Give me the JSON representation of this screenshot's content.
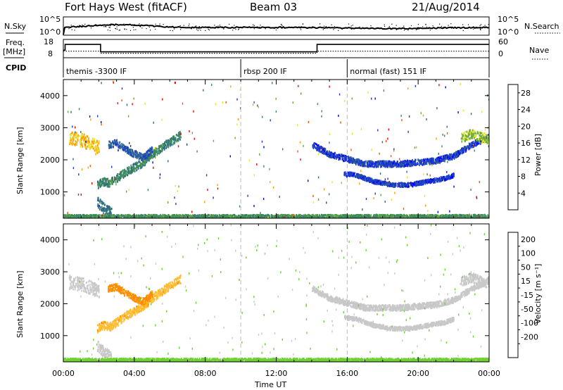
{
  "header": {
    "title": "Fort Hays West (fitACF)",
    "beam": "Beam 03",
    "date": "21/Aug/2014"
  },
  "top_panels": {
    "nsky_label": "N.Sky",
    "nsearch_label": "N.Search",
    "freq_label_1": "Freq.",
    "freq_label_2": "[MHz]",
    "nave_label": "Nave",
    "cpid_label": "CPID",
    "noise_ticks_left": [
      "10^5",
      "10^0"
    ],
    "noise_ticks_right": [
      "10^5",
      "10^0"
    ],
    "freq_ticks_left": [
      "18",
      "8"
    ],
    "nave_ticks_right": [
      "60",
      "0"
    ],
    "freq_steps": {
      "hours": [
        0,
        0.1,
        2.1,
        14.3,
        24
      ],
      "values": [
        12,
        15.7,
        10.9,
        15.7,
        15.7
      ]
    },
    "nave_steps": {
      "hours": [
        0,
        2.1,
        14.3,
        16.1,
        24
      ],
      "values": [
        20,
        12,
        20,
        20,
        20
      ]
    },
    "cpid_modes": [
      {
        "start_hour": 0,
        "label": "themis -3300 IF"
      },
      {
        "start_hour": 10,
        "label": "rbsp 200 IF"
      },
      {
        "start_hour": 16,
        "label": "normal (fast) 151 IF"
      }
    ]
  },
  "chart_data": [
    {
      "type": "heatmap",
      "name": "power",
      "xlabel": "",
      "ylabel": "Slant Range [km]",
      "xlim": [
        0,
        24
      ],
      "ylim": [
        180,
        4500
      ],
      "yticks": [
        1000,
        2000,
        3000,
        4000
      ],
      "colorbar_label": "Power [dB]",
      "colorbar_ticks": [
        4,
        8,
        12,
        16,
        20,
        24,
        28
      ],
      "colorbar_range": [
        0,
        30
      ],
      "mode_change_hours": [
        10,
        16
      ],
      "echo_bands": [
        {
          "hours": [
            0.3,
            0.9,
            1.5,
            2.0
          ],
          "range_km": [
            2700,
            2650,
            2550,
            2400
          ],
          "width_km": 300,
          "value": 20
        },
        {
          "hours": [
            1.9,
            2.2,
            2.6,
            3.0,
            3.5,
            4.0,
            4.5,
            5.0,
            5.6,
            6.2,
            6.6
          ],
          "range_km": [
            1250,
            1350,
            1300,
            1450,
            1650,
            1800,
            1950,
            2200,
            2450,
            2650,
            2800
          ],
          "width_km": 180,
          "value": 11
        },
        {
          "hours": [
            2.5,
            3.0,
            3.5,
            4.0,
            4.5,
            5.0
          ],
          "range_km": [
            2500,
            2550,
            2350,
            2200,
            2100,
            2350
          ],
          "width_km": 150,
          "value": 7
        },
        {
          "hours": [
            1.9,
            2.3,
            2.7
          ],
          "range_km": [
            700,
            500,
            350
          ],
          "width_km": 250,
          "value": 9
        },
        {
          "hours": [
            14.0,
            15.0,
            16.0,
            17.0,
            18.0,
            19.0,
            20.0,
            21.0,
            22.0,
            23.0,
            24.0
          ],
          "range_km": [
            2500,
            2200,
            2050,
            1900,
            1900,
            1900,
            1950,
            2000,
            2150,
            2500,
            2750
          ],
          "width_km": 130,
          "value": 5
        },
        {
          "hours": [
            15.8,
            16.5,
            17.5,
            18.5,
            19.5,
            20.5,
            21.5,
            22.0
          ],
          "range_km": [
            1600,
            1550,
            1350,
            1250,
            1250,
            1350,
            1450,
            1550
          ],
          "width_km": 90,
          "value": 5
        },
        {
          "hours": [
            22.4,
            23.0,
            23.6,
            24.0
          ],
          "range_km": [
            2700,
            2850,
            2700,
            2700
          ],
          "width_km": 220,
          "value": 16
        },
        {
          "hours": [
            0,
            6,
            12,
            18,
            24
          ],
          "range_km": [
            260,
            260,
            260,
            260,
            260
          ],
          "width_km": 80,
          "value": 12
        }
      ]
    },
    {
      "type": "heatmap",
      "name": "velocity",
      "xlabel": "Time UT",
      "ylabel": "Slant Range [km]",
      "xlim": [
        0,
        24
      ],
      "ylim": [
        180,
        4500
      ],
      "yticks": [
        1000,
        2000,
        3000,
        4000
      ],
      "xticks": [
        "00:00",
        "04:00",
        "08:00",
        "12:00",
        "16:00",
        "20:00",
        "00:00"
      ],
      "colorbar_label": "Velocity [m s⁻¹]",
      "colorbar_ticks": [
        200,
        100,
        50,
        15,
        -15,
        -50,
        -100,
        -200
      ],
      "mode_change_hours": [
        10,
        16
      ],
      "echo_bands": [
        {
          "hours": [
            0.3,
            0.9,
            1.5,
            2.0
          ],
          "range_km": [
            2700,
            2650,
            2550,
            2400
          ],
          "width_km": 300,
          "value": 0
        },
        {
          "hours": [
            1.9,
            2.2,
            2.6,
            3.0,
            3.5,
            4.0,
            4.5,
            5.0,
            5.6,
            6.2,
            6.6
          ],
          "range_km": [
            1250,
            1350,
            1300,
            1450,
            1650,
            1800,
            1950,
            2200,
            2450,
            2650,
            2800
          ],
          "width_km": 180,
          "value": -40
        },
        {
          "hours": [
            2.5,
            3.0,
            3.5,
            4.0,
            4.5,
            5.0
          ],
          "range_km": [
            2500,
            2550,
            2350,
            2200,
            2100,
            2350
          ],
          "width_km": 150,
          "value": -60
        },
        {
          "hours": [
            1.9,
            2.3,
            2.7
          ],
          "range_km": [
            700,
            500,
            350
          ],
          "width_km": 250,
          "value": 0
        },
        {
          "hours": [
            14.0,
            15.0,
            16.0,
            17.0,
            18.0,
            19.0,
            20.0,
            21.0,
            22.0,
            23.0,
            24.0
          ],
          "range_km": [
            2500,
            2200,
            2050,
            1900,
            1900,
            1900,
            1950,
            2000,
            2150,
            2500,
            2750
          ],
          "width_km": 130,
          "value": 0
        },
        {
          "hours": [
            15.8,
            16.5,
            17.5,
            18.5,
            19.5,
            20.5,
            21.5,
            22.0
          ],
          "range_km": [
            1600,
            1550,
            1350,
            1250,
            1250,
            1350,
            1450,
            1550
          ],
          "width_km": 90,
          "value": 0
        },
        {
          "hours": [
            22.4,
            23.0,
            23.6,
            24.0
          ],
          "range_km": [
            2700,
            2850,
            2700,
            2700
          ],
          "width_km": 220,
          "value": 0
        },
        {
          "hours": [
            0,
            6,
            12,
            18,
            24
          ],
          "range_km": [
            260,
            260,
            260,
            260,
            260
          ],
          "width_km": 80,
          "value": 30
        }
      ]
    }
  ],
  "colors": {
    "power_scale": [
      "#0000ff",
      "#1e3cc8",
      "#2d6a8c",
      "#3c8c5a",
      "#6aaa3c",
      "#e6e632",
      "#ffa000",
      "#ff5000",
      "#ff0000"
    ],
    "velocity_scale": [
      "#e60000",
      "#ff5000",
      "#ff8c00",
      "#ffbe32",
      "#c8c8c8",
      "#6ed232",
      "#3ca03c",
      "#2d6a8c",
      "#1e3cc8"
    ]
  }
}
